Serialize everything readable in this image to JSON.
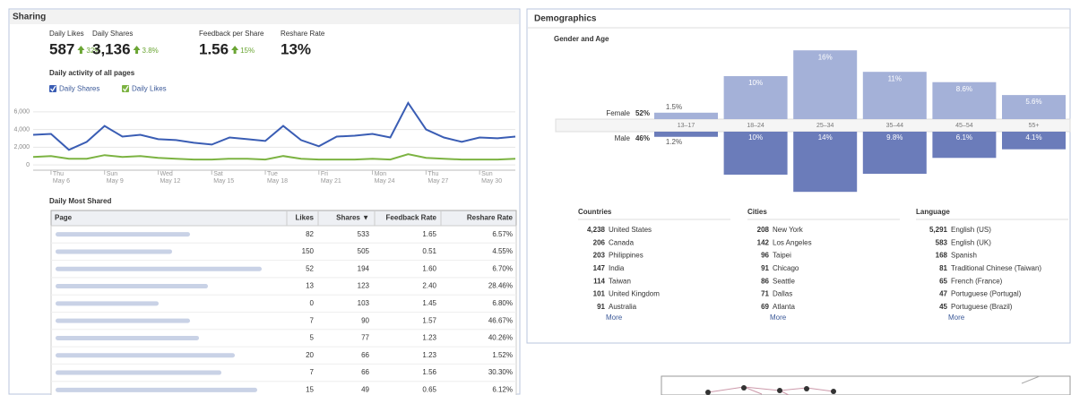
{
  "sharing": {
    "title": "Sharing",
    "kpis": [
      {
        "label": "Daily Likes",
        "value": "587",
        "change": "32%"
      },
      {
        "label": "Daily Shares",
        "value": "3,136",
        "change": "3.8%"
      },
      {
        "label": "Feedback per Share",
        "value": "1.56",
        "change": "15%"
      },
      {
        "label": "Reshare Rate",
        "value": "13%"
      }
    ]
  },
  "chart_data": [
    {
      "type": "line",
      "title": "Daily activity of all pages",
      "categories": [
        null,
        "Thu May 6",
        null,
        null,
        "Sun May 9",
        null,
        null,
        "Wed May 12",
        null,
        null,
        "Sat May 15",
        null,
        null,
        "Tue May 18",
        null,
        null,
        "Fri May 21",
        null,
        null,
        "Mon May 24",
        null,
        null,
        "Thu May 27",
        null,
        null,
        "Sun May 30",
        null,
        null
      ],
      "series": [
        {
          "name": "Daily Shares",
          "color": "#3a5db4",
          "values": [
            3400,
            3500,
            1700,
            2600,
            4400,
            3200,
            3400,
            2900,
            2800,
            2500,
            2300,
            3100,
            2900,
            2700,
            4400,
            2800,
            2100,
            3200,
            3300,
            3500,
            3100,
            7000,
            4000,
            3100,
            2600,
            3100,
            3000,
            3200
          ]
        },
        {
          "name": "Daily Likes",
          "color": "#7cb342",
          "values": [
            900,
            1000,
            700,
            700,
            1100,
            900,
            1000,
            800,
            700,
            600,
            600,
            700,
            700,
            600,
            1000,
            700,
            600,
            600,
            600,
            700,
            600,
            1200,
            800,
            700,
            600,
            600,
            600,
            700
          ]
        }
      ],
      "ylim": [
        -600,
        7500
      ],
      "yticks": [
        0,
        {
          "value": 2000,
          "label": "2,000"
        },
        {
          "value": 4000,
          "label": "4,000"
        },
        {
          "value": 6000,
          "label": "6,000"
        }
      ],
      "grid": true
    },
    {
      "type": "bar",
      "title": "Gender and Age",
      "categories": [
        "13–17",
        "18–24",
        "25–34",
        "35–44",
        "45–54",
        "55+"
      ],
      "series": [
        {
          "name": "Female",
          "total": "52%",
          "color": "#a4b1d8",
          "values": [
            1.5,
            10,
            16,
            11,
            8.6,
            5.6
          ],
          "value_labels": [
            "1.5%",
            "10%",
            "16%",
            "11%",
            "8.6%",
            "5.6%"
          ]
        },
        {
          "name": "Male",
          "total": "46%",
          "color": "#6b7cba",
          "values": [
            1.2,
            10,
            14,
            9.8,
            6.1,
            4.1
          ],
          "value_labels": [
            "1.2%",
            "10%",
            "14%",
            "9.8%",
            "6.1%",
            "4.1%"
          ]
        }
      ]
    }
  ],
  "most_shared": {
    "title": "Daily Most Shared",
    "columns": [
      "Page",
      "Likes",
      "Shares ▼",
      "Feedback Rate",
      "Reshare Rate"
    ],
    "rows": [
      [
        "82",
        "533",
        "1.65",
        "6.57%"
      ],
      [
        "150",
        "505",
        "0.51",
        "4.55%"
      ],
      [
        "52",
        "194",
        "1.60",
        "6.70%"
      ],
      [
        "13",
        "123",
        "2.40",
        "28.46%"
      ],
      [
        "0",
        "103",
        "1.45",
        "6.80%"
      ],
      [
        "7",
        "90",
        "1.57",
        "46.67%"
      ],
      [
        "5",
        "77",
        "1.23",
        "40.26%"
      ],
      [
        "20",
        "66",
        "1.23",
        "1.52%"
      ],
      [
        "7",
        "66",
        "1.56",
        "30.30%"
      ],
      [
        "15",
        "49",
        "0.65",
        "6.12%"
      ]
    ]
  },
  "demographics": {
    "title": "Demographics",
    "lists": [
      {
        "title": "Countries",
        "items": [
          {
            "count": "4,238",
            "name": "United States"
          },
          {
            "count": "206",
            "name": "Canada"
          },
          {
            "count": "203",
            "name": "Philippines"
          },
          {
            "count": "147",
            "name": "India"
          },
          {
            "count": "114",
            "name": "Taiwan"
          },
          {
            "count": "101",
            "name": "United Kingdom"
          },
          {
            "count": "91",
            "name": "Australia"
          }
        ],
        "more": "More"
      },
      {
        "title": "Cities",
        "items": [
          {
            "count": "208",
            "name": "New York"
          },
          {
            "count": "142",
            "name": "Los Angeles"
          },
          {
            "count": "96",
            "name": "Taipei"
          },
          {
            "count": "91",
            "name": "Chicago"
          },
          {
            "count": "86",
            "name": "Seattle"
          },
          {
            "count": "71",
            "name": "Dallas"
          },
          {
            "count": "69",
            "name": "Atlanta"
          }
        ],
        "more": "More"
      },
      {
        "title": "Language",
        "items": [
          {
            "count": "5,291",
            "name": "English (US)"
          },
          {
            "count": "583",
            "name": "English (UK)"
          },
          {
            "count": "168",
            "name": "Spanish"
          },
          {
            "count": "81",
            "name": "Traditional Chinese (Taiwan)"
          },
          {
            "count": "65",
            "name": "French (France)"
          },
          {
            "count": "47",
            "name": "Portuguese (Portugal)"
          },
          {
            "count": "45",
            "name": "Portuguese (Brazil)"
          }
        ],
        "more": "More"
      }
    ]
  }
}
